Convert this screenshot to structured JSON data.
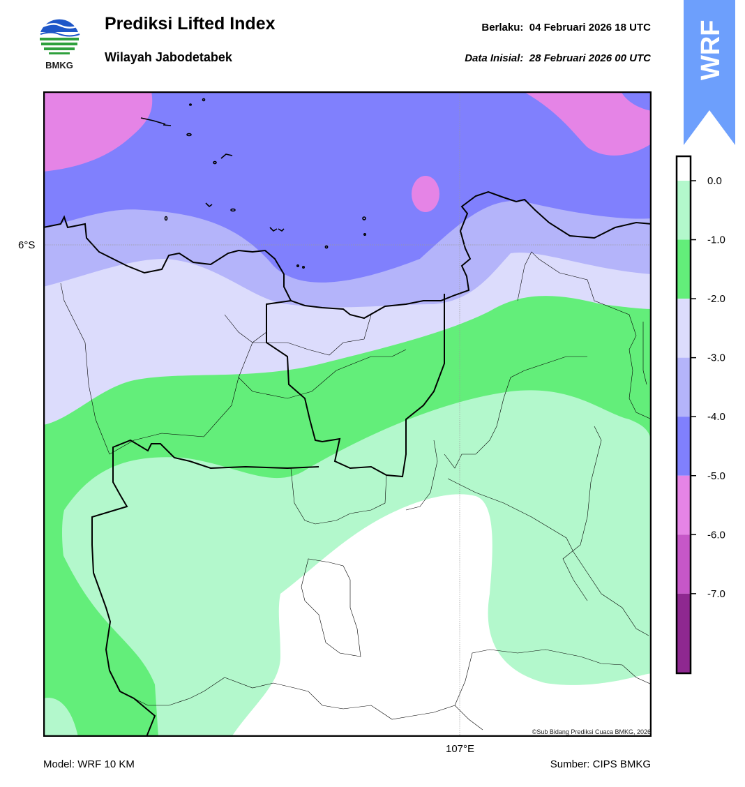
{
  "header": {
    "logo_text": "BMKG",
    "title": "Prediksi Lifted Index",
    "subtitle": "Wilayah Jabodetabek",
    "valid_label": "Berlaku:",
    "valid_value": "04 Februari 2026 18 UTC",
    "init_label": "Data Inisial:",
    "init_value": "28 Februari 2026 00 UTC",
    "model_tab": "WRF"
  },
  "map": {
    "lat_label": "6°S",
    "lon_label": "107°E",
    "copyright": "©Sub Bidang Prediksi Cuaca BMKG, 2026",
    "model": "Model: WRF 10 KM",
    "source": "Sumber: CIPS BMKG"
  },
  "legend": {
    "ticks": [
      "0.0",
      "-1.0",
      "-2.0",
      "-3.0",
      "-4.0",
      "-5.0",
      "-6.0",
      "-7.0"
    ],
    "bins": [
      {
        "range": "> 0",
        "color": "#ffffff"
      },
      {
        "range": "0 to -1",
        "color": "#b3f8cc"
      },
      {
        "range": "-1 to -2",
        "color": "#63ee7a"
      },
      {
        "range": "-2 to -3",
        "color": "#dcdcfc"
      },
      {
        "range": "-3 to -4",
        "color": "#b4b4fa"
      },
      {
        "range": "-4 to -5",
        "color": "#8080fd"
      },
      {
        "range": "-5 to -6",
        "color": "#e584e6"
      },
      {
        "range": "-6 to -7",
        "color": "#c657c8"
      },
      {
        "range": "< -7",
        "color": "#8e2890"
      }
    ]
  },
  "colors": {
    "accent_tab": "#6d9ffc"
  }
}
